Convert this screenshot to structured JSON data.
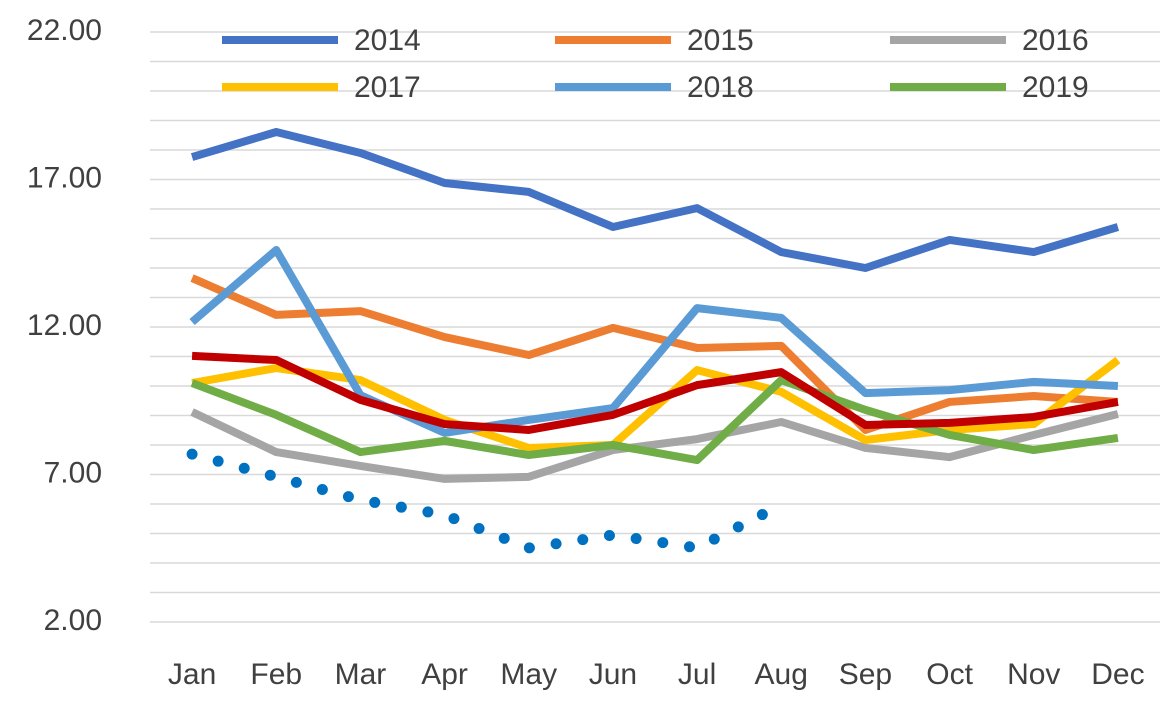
{
  "chart_data": {
    "type": "line",
    "categories": [
      "Jan",
      "Feb",
      "Mar",
      "Apr",
      "May",
      "Jun",
      "Jul",
      "Aug",
      "Sep",
      "Oct",
      "Nov",
      "Dec"
    ],
    "series": [
      {
        "name": "2014",
        "color": "#4472c4",
        "values": [
          17.76,
          18.61,
          17.9,
          16.88,
          16.58,
          15.39,
          16.03,
          14.54,
          14.0,
          14.95,
          14.54,
          15.39
        ]
      },
      {
        "name": "2015",
        "color": "#ed7d31",
        "values": [
          13.66,
          12.41,
          12.54,
          11.66,
          11.05,
          11.97,
          11.29,
          11.36,
          8.51,
          9.46,
          9.66,
          9.46
        ]
      },
      {
        "name": "2016",
        "color": "#a5a5a5",
        "values": [
          9.12,
          7.76,
          7.29,
          6.85,
          6.92,
          7.83,
          8.2,
          8.78,
          7.9,
          7.59,
          8.34,
          9.05
        ]
      },
      {
        "name": "2017",
        "color": "#ffc000",
        "values": [
          10.1,
          10.61,
          10.2,
          8.85,
          7.9,
          8.0,
          10.54,
          9.8,
          8.17,
          8.51,
          8.71,
          10.88
        ]
      },
      {
        "name": "2018",
        "color": "#5b9bd5",
        "values": [
          12.17,
          14.61,
          9.69,
          8.41,
          8.85,
          9.25,
          12.64,
          12.31,
          9.76,
          9.86,
          10.14,
          10.0
        ]
      },
      {
        "name": "2019",
        "color": "#70ad47",
        "values": [
          10.1,
          9.02,
          7.76,
          8.14,
          7.66,
          8.0,
          7.49,
          10.2,
          9.19,
          8.34,
          7.83,
          8.24
        ]
      },
      {
        "color": "#c00000",
        "values": [
          11.02,
          10.88,
          9.53,
          8.71,
          8.51,
          9.02,
          10.03,
          10.47,
          8.68,
          8.75,
          8.95,
          9.46
        ]
      },
      {
        "color": "#0070c0",
        "style": "dotted",
        "values": [
          7.69,
          6.92,
          6.14,
          5.63,
          4.51,
          4.95,
          4.51,
          5.97,
          null,
          null,
          null,
          null
        ]
      }
    ],
    "ylim": [
      2,
      22
    ],
    "yticks": [
      {
        "value": 2,
        "label": "2.00"
      },
      {
        "value": 7,
        "label": "7.00"
      },
      {
        "value": 12,
        "label": "12.00"
      },
      {
        "value": 17,
        "label": "17.00"
      },
      {
        "value": 22,
        "label": "22.00"
      }
    ],
    "minor_yticks": [
      3,
      4,
      5,
      6,
      8,
      9,
      10,
      11,
      13,
      14,
      15,
      16,
      18,
      19,
      20,
      21
    ],
    "grid": true,
    "legend": "top"
  }
}
